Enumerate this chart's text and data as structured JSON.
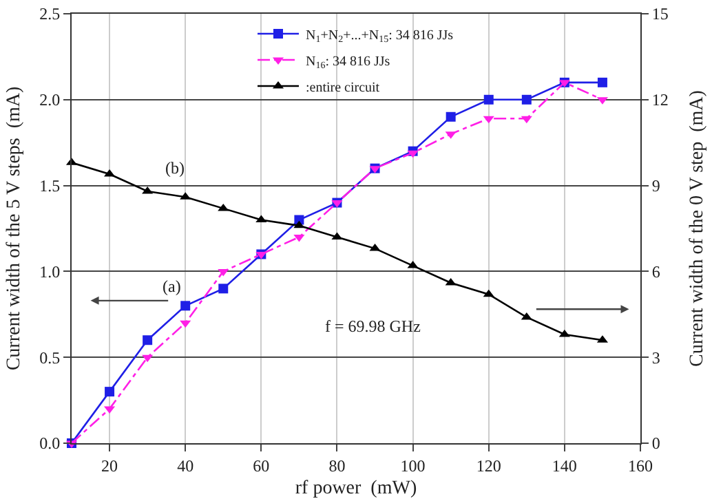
{
  "chart_data": {
    "type": "line",
    "xlabel": "rf power  (mW)",
    "ylabel": "Current width of the 5 V steps  (mA)",
    "y2label": "Current width of the 0 V step  (mA)",
    "x": [
      10,
      20,
      30,
      40,
      50,
      60,
      70,
      80,
      90,
      100,
      110,
      120,
      130,
      140,
      150
    ],
    "series": [
      {
        "name": "N$_{1}$+N$_{2}$+...+N$_{15}$: 34 816 JJs",
        "color": "#1f1fe6",
        "marker": "square",
        "line_style": "solid",
        "values": [
          0,
          0.3,
          0.6,
          0.8,
          0.9,
          1.1,
          1.3,
          1.4,
          1.6,
          1.7,
          1.9,
          2.0,
          2.0,
          2.1,
          2.1
        ]
      },
      {
        "name": "N$_{16}$: 34 816 JJs",
        "color": "#ff1fe6",
        "marker": "triangle-down",
        "line_style": "dashdot",
        "values": [
          0,
          0.2,
          0.5,
          0.7,
          1.0,
          1.1,
          1.2,
          1.4,
          1.6,
          1.69,
          1.8,
          1.89,
          1.89,
          2.1,
          2.0
        ]
      },
      {
        "name": ":entire circuit",
        "color": "#000000",
        "marker": "triangle",
        "line_style": "solid",
        "axis": "y2",
        "values": [
          9.8,
          9.4,
          8.8,
          8.6,
          8.2,
          7.8,
          7.6,
          7.2,
          6.8,
          6.2,
          5.6,
          5.2,
          4.4,
          3.8,
          3.6
        ]
      }
    ],
    "xlim": [
      10,
      160
    ],
    "xticks": [
      20,
      40,
      60,
      80,
      100,
      120,
      140,
      160
    ],
    "ylim": [
      0,
      2.5
    ],
    "yticks": [
      {
        "value": 0,
        "label": "0.0"
      },
      {
        "value": 0.5,
        "label": "0.5"
      },
      {
        "value": 1,
        "label": "1.0"
      },
      {
        "value": 1.5,
        "label": "1.5"
      },
      {
        "value": 2,
        "label": "2.0"
      },
      {
        "value": 2.5,
        "label": "2.5"
      }
    ],
    "y2lim": [
      0,
      15
    ],
    "y2ticks": [
      0,
      3,
      6,
      9,
      12,
      15
    ],
    "grid": true,
    "legend": "top",
    "annotations": [
      {
        "text": "(a)",
        "x": 40,
        "y": 0.8
      },
      "(b)",
      "f = 69.98 GHz"
    ]
  }
}
